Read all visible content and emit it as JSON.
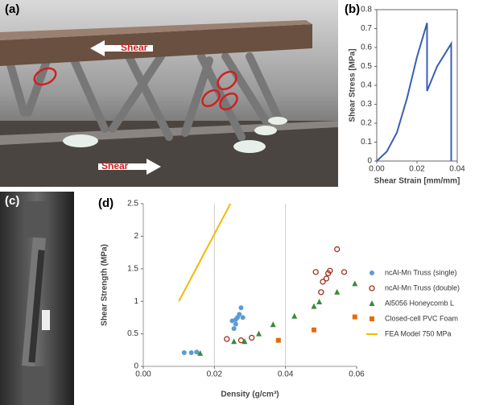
{
  "photos": {
    "a": {
      "label": "(a)",
      "arrow_top": "Shear",
      "arrow_bottom": "Shear"
    },
    "c": {
      "label": "(c)"
    }
  },
  "chart_data": [
    {
      "type": "line",
      "panel": "(b)",
      "x_label": "Shear Strain [mm/mm]",
      "y_label": "Shear Stress [MPa]",
      "xlim": [
        0,
        0.04
      ],
      "xticks": [
        {
          "value": 0,
          "label": "0.00"
        },
        0.02,
        0.04
      ],
      "ylim": [
        0,
        0.8
      ],
      "yticks": [
        0,
        0.1,
        0.2,
        0.3,
        0.4,
        0.5,
        0.6,
        0.7,
        0.8
      ],
      "grid": "none",
      "series": [
        {
          "color": "#3a5fb0",
          "x": [
            0,
            0.005,
            0.01,
            0.015,
            0.02,
            0.025,
            0.025,
            0.03,
            0.037,
            0.037
          ],
          "values": [
            0,
            0.05,
            0.15,
            0.33,
            0.55,
            0.73,
            0.37,
            0.5,
            0.62,
            0
          ]
        }
      ]
    },
    {
      "type": "scatter",
      "panel": "(d)",
      "x_label": "Density (g/cm³)",
      "y_label": "Shear Strength (MPa)",
      "xlim": [
        0,
        0.06
      ],
      "xticks": [
        {
          "value": 0,
          "label": "0.00"
        },
        0.02,
        0.04,
        0.06
      ],
      "ylim": [
        0,
        2.5
      ],
      "yticks": [
        0,
        0.5,
        1,
        1.5,
        2,
        2.5
      ],
      "grid": "x",
      "legend": "right",
      "series": [
        {
          "name": "ncAl-Mn Truss (single)",
          "color": "#5b9bd5",
          "marker": "circle",
          "x": [
            0.0115,
            0.0135,
            0.015,
            0.0255,
            0.025,
            0.026,
            0.026,
            0.0265,
            0.027,
            0.0275,
            0.028
          ],
          "values": [
            0.21,
            0.21,
            0.22,
            0.58,
            0.7,
            0.65,
            0.72,
            0.75,
            0.8,
            0.9,
            0.75
          ]
        },
        {
          "name": "ncAl-Mn Truss (double)",
          "color": "#a0301e",
          "marker": "open-circle",
          "x": [
            0.0235,
            0.0275,
            0.0305,
            0.0485,
            0.05,
            0.0505,
            0.0515,
            0.052,
            0.0525,
            0.0545,
            0.0565
          ],
          "values": [
            0.42,
            0.4,
            0.44,
            1.45,
            1.14,
            1.3,
            1.35,
            1.43,
            1.47,
            1.8,
            1.45
          ]
        },
        {
          "name": "Al5056 Honeycomb L",
          "color": "#3a8a3a",
          "marker": "triangle",
          "x": [
            0.016,
            0.0255,
            0.0285,
            0.0325,
            0.0365,
            0.0425,
            0.048,
            0.0495,
            0.0545,
            0.0595
          ],
          "values": [
            0.2,
            0.38,
            0.38,
            0.5,
            0.64,
            0.77,
            0.92,
            0.99,
            1.14,
            1.27
          ]
        },
        {
          "name": "Closed-cell PVC Foam",
          "color": "#e46c0a",
          "marker": "square",
          "x": [
            0.038,
            0.048,
            0.0595
          ],
          "values": [
            0.4,
            0.56,
            0.76
          ]
        },
        {
          "name": "FEA Model 750 MPa",
          "color": "#f5b800",
          "marker": "line",
          "x": [
            0.01,
            0.0245
          ],
          "values": [
            1.0,
            2.5
          ]
        }
      ]
    }
  ]
}
